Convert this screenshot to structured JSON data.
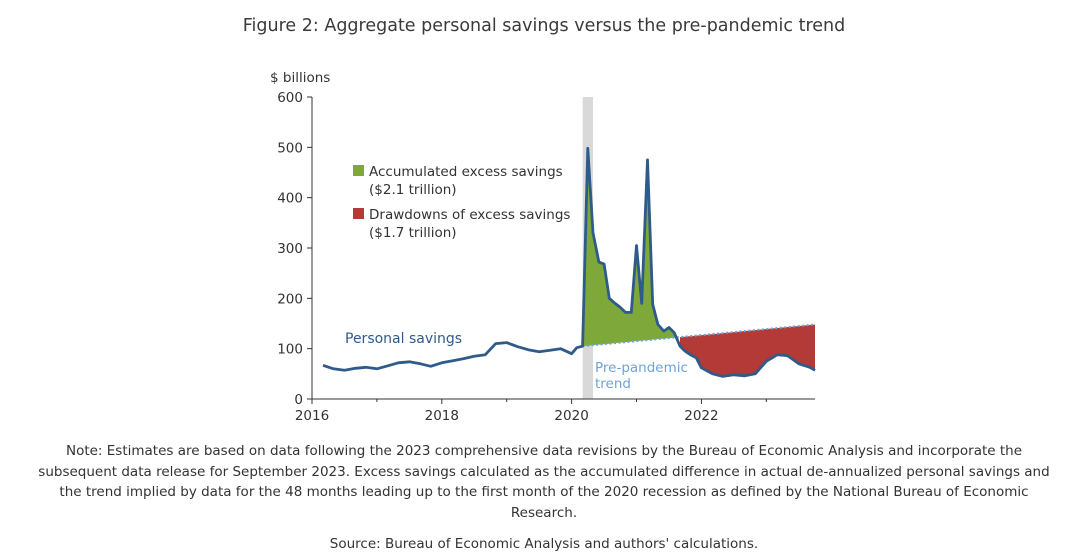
{
  "figure": {
    "title": "Figure 2: Aggregate personal savings versus the pre-pandemic trend",
    "note": "Note: Estimates are based on data following the 2023 comprehensive data revisions by the Bureau of Economic Analysis and incorporate the subsequent data release for September 2023. Excess savings calculated as the accumulated difference in actual de-annualized personal savings and the trend implied by data for the 48 months leading up to the first month of the 2020 recession as defined by the National Bureau of Economic Research.",
    "source": "Source: Bureau of Economic Analysis and authors' calculations."
  },
  "chart_data": {
    "type": "line",
    "ylabel": "$ billions",
    "ylim": [
      0,
      600
    ],
    "yticks": [
      "0",
      "100",
      "200",
      "300",
      "400",
      "500",
      "600"
    ],
    "xlim": [
      2016,
      2023.75
    ],
    "xticks": [
      "2016",
      "2018",
      "2020",
      "2022"
    ],
    "grid": false,
    "recession_shading": {
      "start": 2020.17,
      "end": 2020.33
    },
    "colors": {
      "savings_line": "#2f5b8a",
      "trend_line": "#6fa3d8",
      "excess_fill": "#7fa83a",
      "drawdown_fill": "#b33a36",
      "recession": "#d9d9d9"
    },
    "annotations": {
      "series_label": "Personal savings",
      "trend_label_line1": "Pre-pandemic",
      "trend_label_line2": "trend",
      "legend_excess_line1": "Accumulated excess savings",
      "legend_excess_line2": "($2.1 trillion)",
      "legend_drawdown_line1": "Drawdowns of excess savings",
      "legend_drawdown_line2": "($1.7 trillion)"
    },
    "trend": {
      "x": [
        2020.17,
        2023.75
      ],
      "y": [
        105,
        148
      ]
    },
    "series": [
      {
        "name": "Personal savings",
        "x": [
          2016.17,
          2016.33,
          2016.5,
          2016.67,
          2016.83,
          2017.0,
          2017.17,
          2017.33,
          2017.5,
          2017.67,
          2017.83,
          2018.0,
          2018.17,
          2018.33,
          2018.5,
          2018.67,
          2018.83,
          2019.0,
          2019.17,
          2019.33,
          2019.5,
          2019.67,
          2019.83,
          2020.0,
          2020.08,
          2020.17,
          2020.25,
          2020.33,
          2020.42,
          2020.5,
          2020.58,
          2020.67,
          2020.75,
          2020.83,
          2020.92,
          2021.0,
          2021.08,
          2021.17,
          2021.25,
          2021.33,
          2021.42,
          2021.5,
          2021.58,
          2021.67,
          2021.75,
          2021.83,
          2021.92,
          2022.0,
          2022.17,
          2022.33,
          2022.5,
          2022.67,
          2022.83,
          2023.0,
          2023.17,
          2023.33,
          2023.5,
          2023.67,
          2023.75
        ],
        "y": [
          67,
          60,
          57,
          61,
          63,
          60,
          66,
          72,
          74,
          70,
          65,
          72,
          76,
          80,
          85,
          88,
          110,
          112,
          104,
          98,
          94,
          97,
          100,
          90,
          102,
          105,
          498,
          330,
          272,
          268,
          200,
          190,
          182,
          172,
          172,
          305,
          190,
          475,
          188,
          148,
          135,
          142,
          132,
          105,
          95,
          88,
          82,
          62,
          50,
          45,
          48,
          46,
          50,
          75,
          88,
          86,
          70,
          63,
          57
        ]
      }
    ]
  }
}
